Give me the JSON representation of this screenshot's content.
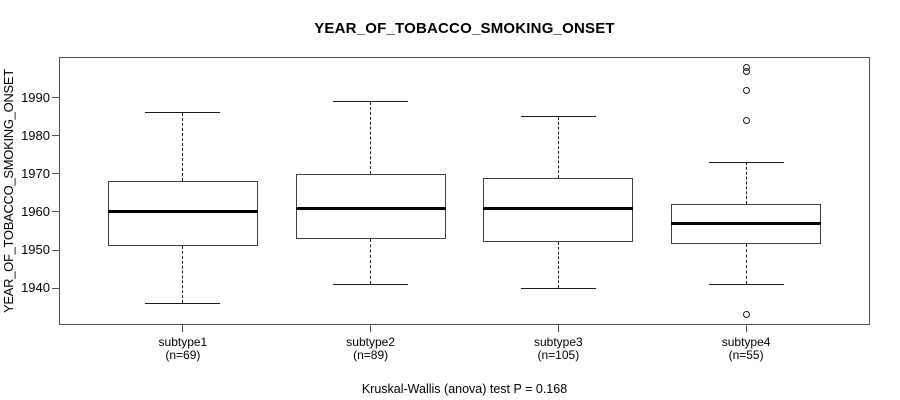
{
  "chart_data": {
    "type": "box",
    "title": "YEAR_OF_TOBACCO_SMOKING_ONSET",
    "ylabel": "YEAR_OF_TOBACCO_SMOKING_ONSET",
    "xlabel": "",
    "note": "Kruskal-Wallis (anova) test P = 0.168",
    "ylim": [
      1930.3,
      2000.7
    ],
    "yticks": [
      1940,
      1950,
      1960,
      1970,
      1980,
      1990
    ],
    "grid": false,
    "legend": "none",
    "categories": [
      "subtype1",
      "subtype2",
      "subtype3",
      "subtype4"
    ],
    "series": [
      {
        "label": "subtype1",
        "n_label": "(n=69)",
        "n": 69,
        "whisker_low": 1936,
        "q1": 1951,
        "median": 1960,
        "q3": 1968,
        "whisker_high": 1986,
        "outliers": []
      },
      {
        "label": "subtype2",
        "n_label": "(n=89)",
        "n": 89,
        "whisker_low": 1941,
        "q1": 1953,
        "median": 1961,
        "q3": 1970,
        "whisker_high": 1989,
        "outliers": []
      },
      {
        "label": "subtype3",
        "n_label": "(n=105)",
        "n": 105,
        "whisker_low": 1940,
        "q1": 1952,
        "median": 1961,
        "q3": 1969,
        "whisker_high": 1985,
        "outliers": []
      },
      {
        "label": "subtype4",
        "n_label": "(n=55)",
        "n": 55,
        "whisker_low": 1941,
        "q1": 1951.5,
        "median": 1957,
        "q3": 1962,
        "whisker_high": 1973,
        "outliers": [
          1998,
          1997,
          1992,
          1984,
          1933
        ]
      }
    ],
    "colors": {
      "line": "#000000",
      "frame": "#4e4e4e",
      "box_fill": "#ffffff",
      "background": "#ffffff"
    }
  }
}
